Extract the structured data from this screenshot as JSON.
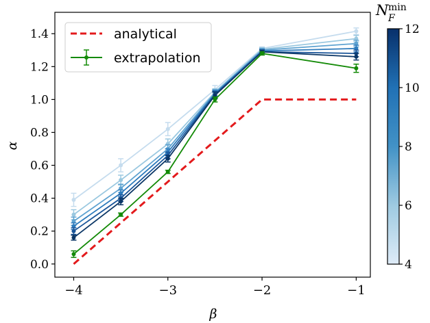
{
  "chart_data": {
    "type": "line",
    "xlabel": "β",
    "ylabel": "α",
    "xlim": [
      -4.2,
      -0.85
    ],
    "ylim": [
      -0.08,
      1.53
    ],
    "xticks": [
      -4,
      -3,
      -2,
      -1
    ],
    "xtick_labels": [
      "−4",
      "−3",
      "−2",
      "−1"
    ],
    "yticks": [
      0.0,
      0.2,
      0.4,
      0.6,
      0.8,
      1.0,
      1.2,
      1.4
    ],
    "ytick_labels": [
      "0.0",
      "0.2",
      "0.4",
      "0.6",
      "0.8",
      "1.0",
      "1.2",
      "1.4"
    ],
    "x": [
      -4,
      -3.5,
      -3,
      -2.5,
      -2,
      -1
    ],
    "analytical": {
      "name": "analytical",
      "color": "#e31a1c",
      "x": [
        -4,
        -3,
        -2,
        -1
      ],
      "values": [
        0.0,
        0.5,
        1.0,
        1.0
      ]
    },
    "extrapolation": {
      "name": "extrapolation",
      "color": "#138a07",
      "values": [
        0.06,
        0.3,
        0.56,
        1.0,
        1.28,
        1.19
      ],
      "errors": [
        0.02,
        0.01,
        0.01,
        0.015,
        0.01,
        0.025
      ]
    },
    "series": [
      {
        "nfmin": 4,
        "color": "#c5dcee",
        "values": [
          0.39,
          0.6,
          0.82,
          1.06,
          1.31,
          1.415
        ],
        "errors": [
          0.04,
          0.04,
          0.04,
          0.025,
          0.01,
          0.02
        ]
      },
      {
        "nfmin": 5,
        "color": "#9ac8e0",
        "values": [
          0.3,
          0.51,
          0.73,
          1.045,
          1.305,
          1.37
        ],
        "errors": [
          0.03,
          0.03,
          0.03,
          0.02,
          0.01,
          0.02
        ]
      },
      {
        "nfmin": 6,
        "color": "#5fa3d1",
        "values": [
          0.26,
          0.46,
          0.7,
          1.04,
          1.3,
          1.34
        ],
        "errors": [
          0.025,
          0.025,
          0.025,
          0.02,
          0.01,
          0.02
        ]
      },
      {
        "nfmin": 8,
        "color": "#2e7bbc",
        "values": [
          0.23,
          0.43,
          0.68,
          1.035,
          1.295,
          1.31
        ],
        "errors": [
          0.02,
          0.02,
          0.02,
          0.02,
          0.01,
          0.02
        ]
      },
      {
        "nfmin": 10,
        "color": "#1a5599",
        "values": [
          0.2,
          0.4,
          0.66,
          1.03,
          1.29,
          1.28
        ],
        "errors": [
          0.02,
          0.02,
          0.02,
          0.02,
          0.01,
          0.02
        ]
      },
      {
        "nfmin": 12,
        "color": "#0b3666",
        "values": [
          0.16,
          0.38,
          0.64,
          1.025,
          1.29,
          1.26
        ],
        "errors": [
          0.015,
          0.02,
          0.02,
          0.02,
          0.01,
          0.02
        ]
      }
    ],
    "legend": {
      "position": "upper-left",
      "entries": [
        "analytical",
        "extrapolation"
      ]
    },
    "colorbar": {
      "label_main": "N",
      "label_sub": "F",
      "label_sup": "min",
      "range": [
        4,
        12
      ],
      "ticks": [
        4,
        6,
        8,
        10,
        12
      ],
      "tick_labels": [
        "4",
        "6",
        "8",
        "10",
        "12"
      ],
      "colormap": "Blues",
      "color_low": "#deebf7",
      "color_high": "#08306b"
    }
  }
}
